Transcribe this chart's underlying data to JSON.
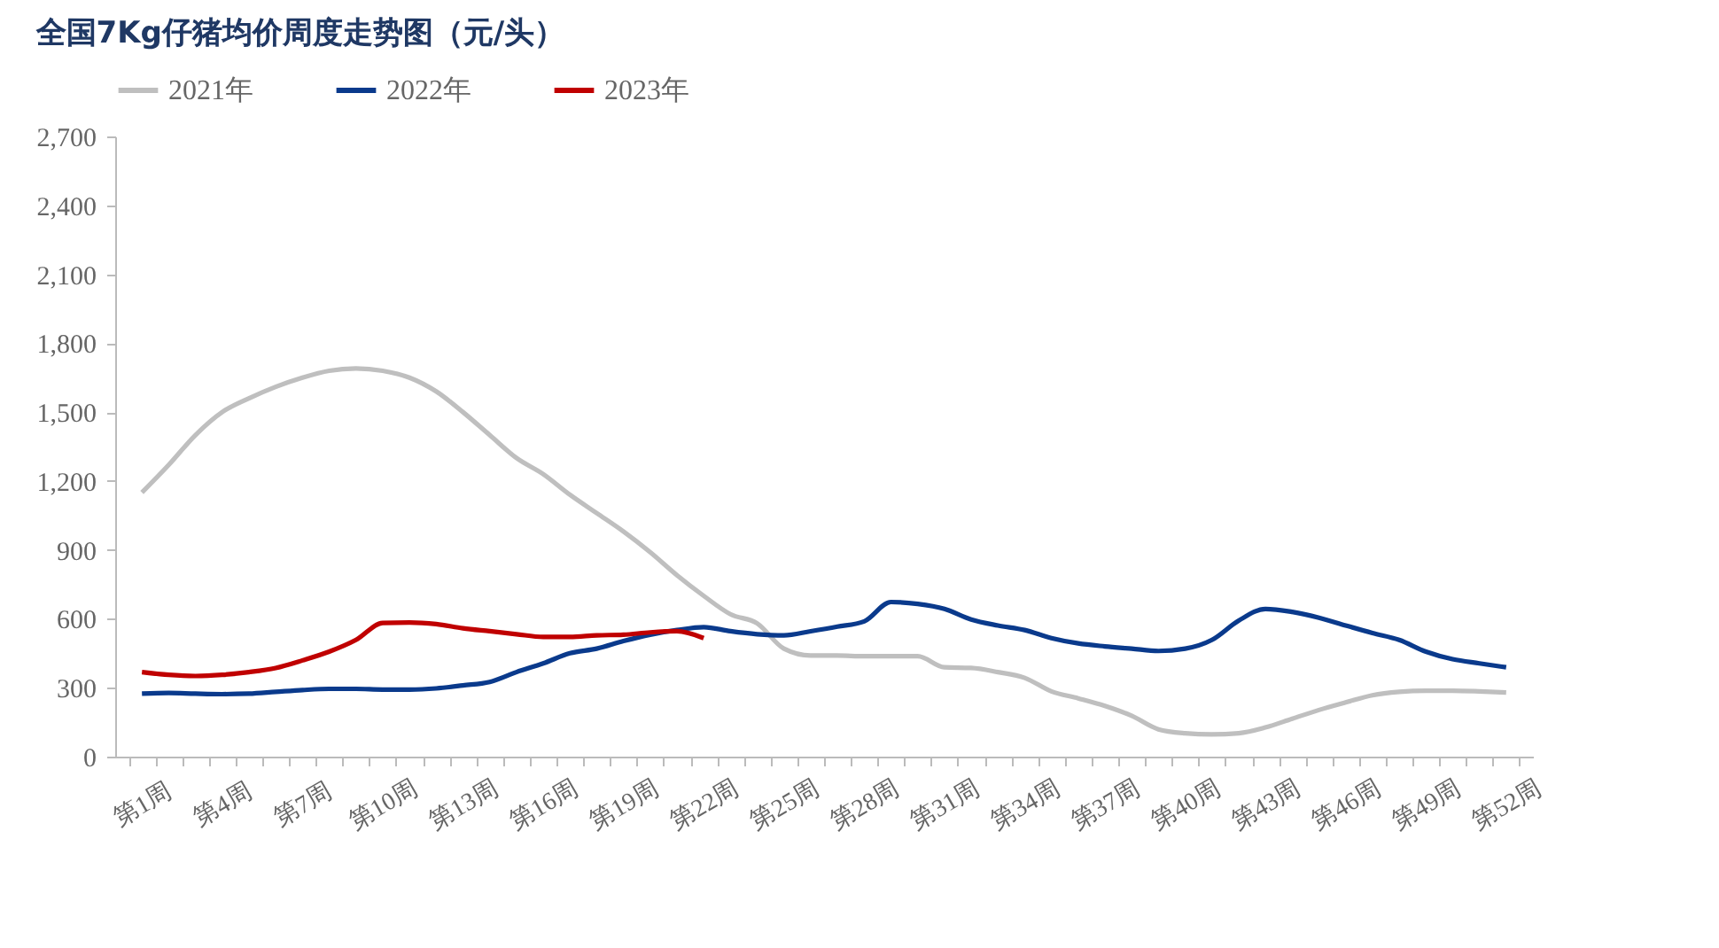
{
  "chart_data": {
    "type": "line",
    "title": "全国7Kg仔猪均价周度走势图（元/头）",
    "categories": [
      "第1周",
      null,
      null,
      "第4周",
      null,
      null,
      "第7周",
      null,
      null,
      "第10周",
      null,
      null,
      "第13周",
      null,
      null,
      "第16周",
      null,
      null,
      "第19周",
      null,
      null,
      "第22周",
      null,
      null,
      "第25周",
      null,
      null,
      "第28周",
      null,
      null,
      "第31周",
      null,
      null,
      "第34周",
      null,
      null,
      "第37周",
      null,
      null,
      "第40周",
      null,
      null,
      "第43周",
      null,
      null,
      "第46周",
      null,
      null,
      "第49周",
      null,
      null,
      "第52周"
    ],
    "series": [
      {
        "name": "2021年",
        "color": "#bfbfbf",
        "values": [
          1150,
          1270,
          1400,
          1500,
          1560,
          1610,
          1650,
          1680,
          1690,
          1680,
          1650,
          1590,
          1500,
          1400,
          1300,
          1230,
          1140,
          1060,
          980,
          890,
          790,
          700,
          620,
          580,
          470,
          440,
          440,
          437,
          437,
          437,
          389,
          386,
          368,
          343,
          284,
          254,
          221,
          178,
          119,
          102,
          97,
          102,
          127,
          165,
          203,
          236,
          267,
          282,
          287,
          287,
          284,
          279
        ]
      },
      {
        "name": "2022年",
        "color": "#0a3a8c",
        "values": [
          274,
          277,
          274,
          272,
          274,
          282,
          290,
          295,
          295,
          292,
          292,
          297,
          310,
          325,
          368,
          406,
          450,
          470,
          503,
          531,
          551,
          564,
          546,
          533,
          528,
          546,
          566,
          589,
          673,
          665,
          643,
          597,
          571,
          551,
          516,
          493,
          480,
          470,
          460,
          470,
          508,
          592,
          643,
          630,
          605,
          571,
          538,
          508,
          457,
          424,
          406,
          389
        ]
      },
      {
        "name": "2023年",
        "color": "#c00000",
        "values": [
          368,
          356,
          351,
          356,
          368,
          386,
          419,
          457,
          508,
          582,
          584,
          577,
          559,
          546,
          533,
          521,
          521,
          528,
          531,
          541,
          546,
          516,
          null,
          null,
          null,
          null,
          null,
          null,
          null,
          null,
          null,
          null,
          null,
          null,
          null,
          null,
          null,
          null,
          null,
          null,
          null,
          null,
          null,
          null,
          null,
          null,
          null,
          null,
          null,
          null,
          null,
          null
        ]
      }
    ],
    "ylim": [
      0,
      2700
    ],
    "yticks": [
      0,
      300,
      600,
      900,
      {
        "value": 1200,
        "label": "1,200"
      },
      {
        "value": 1500,
        "label": "1,500"
      },
      {
        "value": 1800,
        "label": "1,800"
      },
      {
        "value": 2100,
        "label": "2,100"
      },
      {
        "value": 2400,
        "label": "2,400"
      },
      {
        "value": 2700,
        "label": "2,700"
      }
    ],
    "legend": "top",
    "grid": false,
    "marker": "none",
    "line_style": "solid"
  }
}
